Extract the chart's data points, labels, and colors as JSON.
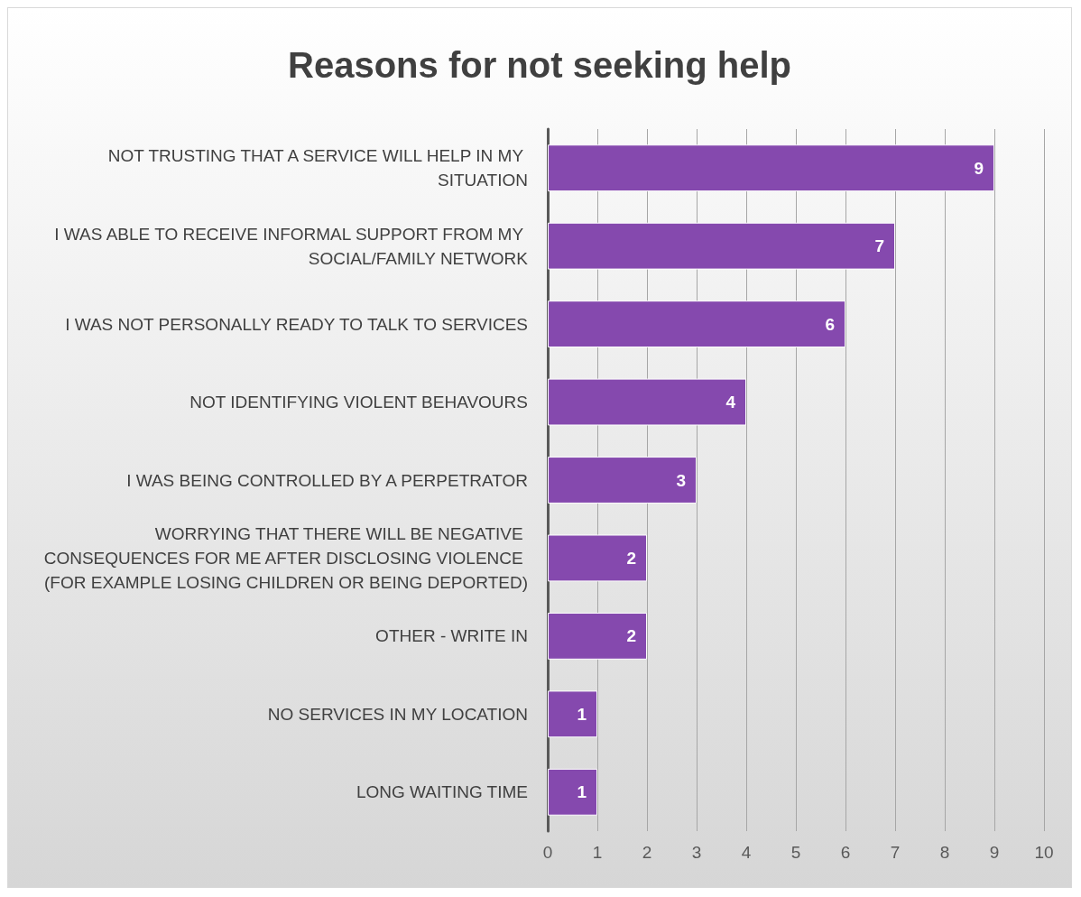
{
  "chart_data": {
    "type": "bar",
    "orientation": "horizontal",
    "title": "Reasons for not seeking help",
    "categories": [
      "NOT TRUSTING THAT A SERVICE WILL HELP IN MY SITUATION",
      "I WAS ABLE TO RECEIVE INFORMAL SUPPORT FROM MY SOCIAL/FAMILY NETWORK",
      "I WAS NOT PERSONALLY READY TO TALK TO SERVICES",
      "NOT IDENTIFYING VIOLENT BEHAVOURS",
      "I WAS BEING CONTROLLED BY A PERPETRATOR",
      "WORRYING THAT THERE WILL BE NEGATIVE CONSEQUENCES FOR ME AFTER DISCLOSING VIOLENCE (FOR EXAMPLE LOSING CHILDREN OR BEING DEPORTED)",
      "OTHER - WRITE IN",
      "NO SERVICES IN MY LOCATION",
      "LONG WAITING TIME"
    ],
    "values": [
      9,
      7,
      6,
      4,
      3,
      2,
      2,
      1,
      1
    ],
    "color": "#8549ae",
    "xlim": [
      0,
      10
    ],
    "xticks": [
      0,
      1,
      2,
      3,
      4,
      5,
      6,
      7,
      8,
      9,
      10
    ],
    "grid": "x",
    "data_labels": true
  }
}
